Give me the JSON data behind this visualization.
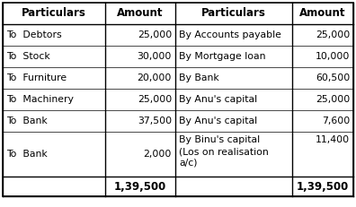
{
  "col_headers": [
    "Particulars",
    "Amount",
    "Particulars",
    "Amount"
  ],
  "left_rows": [
    [
      "To  Debtors",
      "25,000"
    ],
    [
      "To  Stock",
      "30,000"
    ],
    [
      "To  Furniture",
      "20,000"
    ],
    [
      "To  Machinery",
      "25,000"
    ],
    [
      "To  Bank",
      "37,500"
    ],
    [
      "To  Bank",
      "2,000"
    ]
  ],
  "right_rows": [
    [
      "By Accounts payable",
      "25,000"
    ],
    [
      "By Mortgage loan",
      "10,000"
    ],
    [
      "By Bank",
      "60,500"
    ],
    [
      "By Anu's capital",
      "25,000"
    ],
    [
      "By Anu's capital",
      "7,600"
    ],
    [
      "By Binu's capital",
      "11,400"
    ]
  ],
  "right_row_extra": [
    "(Los on realisation",
    "a/c)"
  ],
  "total_left": "1,39,500",
  "total_right": "1,39,500",
  "bg_color": "#ffffff",
  "border_color": "#000000",
  "text_color": "#000000",
  "header_fontsize": 8.5,
  "body_fontsize": 7.8,
  "total_fontsize": 8.5
}
